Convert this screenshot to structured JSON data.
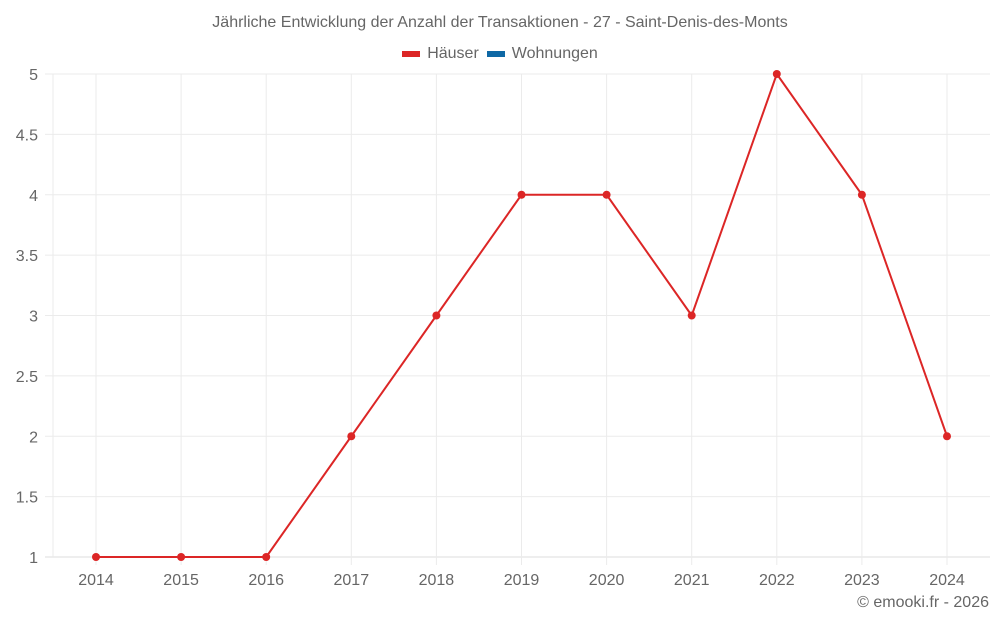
{
  "title": "Jährliche Entwicklung der Anzahl der Transaktionen - 27 - Saint-Denis-des-Monts",
  "legend": [
    {
      "label": "Häuser",
      "color": "#dc2626"
    },
    {
      "label": "Wohnungen",
      "color": "#0e68a5"
    }
  ],
  "credit": "© emooki.fr - 2026",
  "chart_data": {
    "type": "line",
    "title": "Jährliche Entwicklung der Anzahl der Transaktionen - 27 - Saint-Denis-des-Monts",
    "xlabel": "",
    "ylabel": "",
    "categories": [
      "2014",
      "2015",
      "2016",
      "2017",
      "2018",
      "2019",
      "2020",
      "2021",
      "2022",
      "2023",
      "2024"
    ],
    "series": [
      {
        "name": "Häuser",
        "color": "#dc2626",
        "values": [
          1,
          1,
          1,
          2,
          3,
          4,
          4,
          3,
          5,
          4,
          2
        ]
      },
      {
        "name": "Wohnungen",
        "color": "#0e68a5",
        "values": []
      }
    ],
    "ylim": [
      1,
      5
    ],
    "yticks": [
      "1",
      "1.5",
      "2",
      "2.5",
      "3",
      "3.5",
      "4",
      "4.5",
      "5"
    ],
    "grid": true,
    "legend_position": "top"
  }
}
